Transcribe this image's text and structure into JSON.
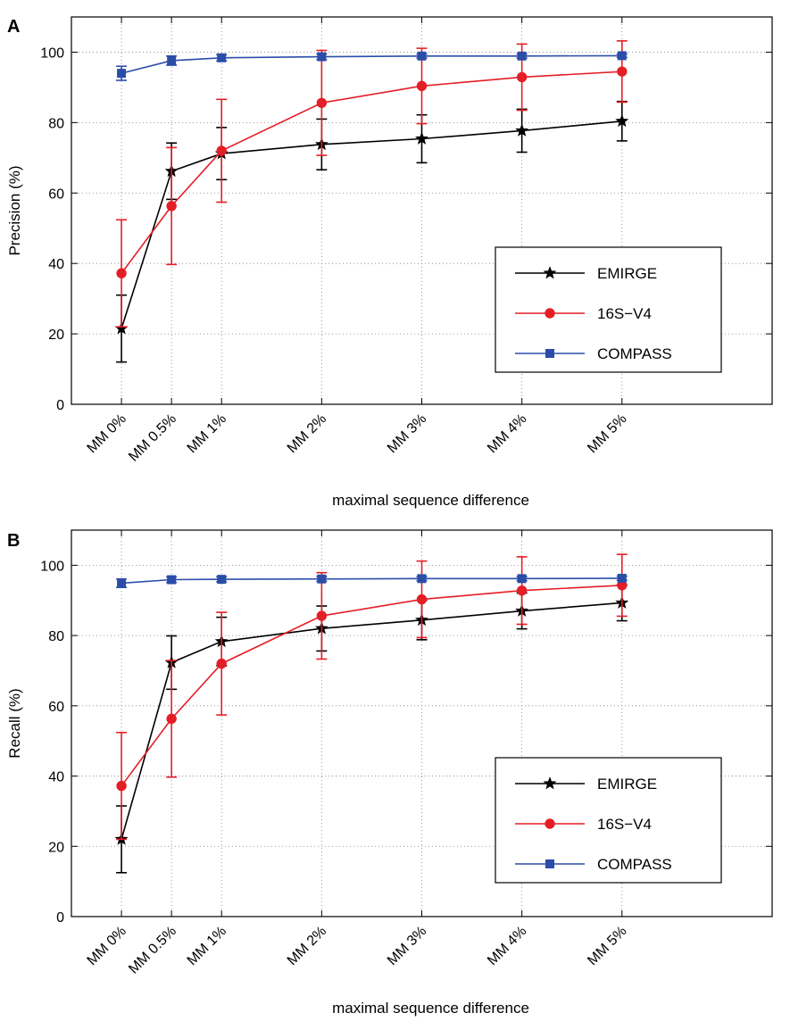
{
  "chart_data": [
    {
      "type": "line",
      "panel_label": "A",
      "xlabel": "maximal sequence difference",
      "ylabel": "Precision (%)",
      "categories": [
        "MM 0%",
        "MM 0.5%",
        "MM 1%",
        "MM 2%",
        "MM 3%",
        "MM 4%",
        "MM 5%"
      ],
      "x": [
        0,
        0.5,
        1,
        2,
        3,
        4,
        5
      ],
      "xlim": [
        -0.5,
        6.5
      ],
      "ylim": [
        0,
        110
      ],
      "yticks": [
        0,
        20,
        40,
        60,
        80,
        100
      ],
      "grid": true,
      "legend_position": "lower-right",
      "series": [
        {
          "name": "EMIRGE",
          "color": "#000000",
          "marker": "star",
          "values": [
            21.5,
            66.2,
            71.2,
            73.8,
            75.4,
            77.7,
            80.4
          ],
          "error": [
            9.5,
            8.0,
            7.4,
            7.2,
            6.8,
            6.1,
            5.6
          ]
        },
        {
          "name": "16S−V4",
          "color": "#e41e26",
          "marker": "circle",
          "values": [
            37.2,
            56.3,
            72.0,
            85.6,
            90.4,
            92.9,
            94.5
          ],
          "error": [
            15.2,
            16.6,
            14.6,
            14.9,
            10.7,
            9.4,
            8.7
          ]
        },
        {
          "name": "COMPASS",
          "color": "#2b4da8",
          "marker": "square",
          "values": [
            94.0,
            97.6,
            98.4,
            98.7,
            98.9,
            98.9,
            99.0
          ],
          "error": [
            2.0,
            1.3,
            0.9,
            0.8,
            0.6,
            0.6,
            0.5
          ]
        }
      ]
    },
    {
      "type": "line",
      "panel_label": "B",
      "xlabel": "maximal sequence difference",
      "ylabel": "Recall (%)",
      "categories": [
        "MM 0%",
        "MM 0.5%",
        "MM 1%",
        "MM 2%",
        "MM 3%",
        "MM 4%",
        "MM 5%"
      ],
      "x": [
        0,
        0.5,
        1,
        2,
        3,
        4,
        5
      ],
      "xlim": [
        -0.5,
        6.5
      ],
      "ylim": [
        0,
        110
      ],
      "yticks": [
        0,
        20,
        40,
        60,
        80,
        100
      ],
      "grid": true,
      "legend_position": "lower-right",
      "series": [
        {
          "name": "EMIRGE",
          "color": "#000000",
          "marker": "star",
          "values": [
            22.0,
            72.3,
            78.3,
            82.0,
            84.4,
            87.0,
            89.3
          ],
          "error": [
            9.5,
            7.6,
            6.9,
            6.4,
            5.6,
            5.1,
            5.1
          ]
        },
        {
          "name": "16S−V4",
          "color": "#e41e26",
          "marker": "circle",
          "values": [
            37.2,
            56.3,
            72.0,
            85.6,
            90.3,
            92.8,
            94.3
          ],
          "error": [
            15.2,
            16.6,
            14.6,
            12.3,
            10.9,
            9.6,
            8.8
          ]
        },
        {
          "name": "COMPASS",
          "color": "#2b4da8",
          "marker": "square",
          "values": [
            94.9,
            95.9,
            96.0,
            96.1,
            96.2,
            96.2,
            96.3
          ],
          "error": [
            1.2,
            0.8,
            0.7,
            0.7,
            0.6,
            0.6,
            0.6
          ]
        }
      ]
    }
  ]
}
